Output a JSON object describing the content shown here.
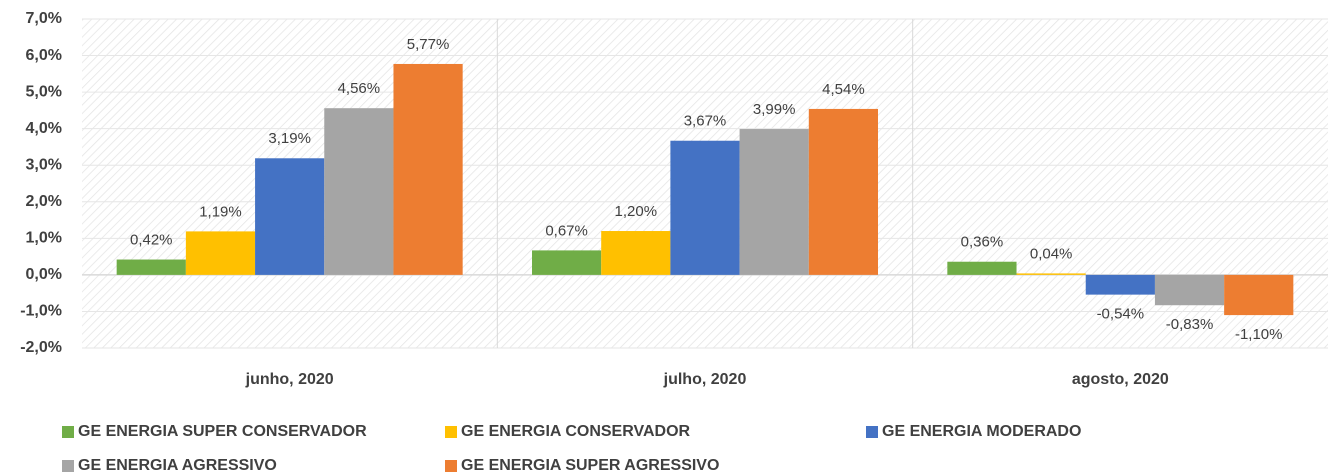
{
  "chart_data": {
    "type": "bar",
    "categories": [
      "junho, 2020",
      "julho, 2020",
      "agosto, 2020"
    ],
    "series": [
      {
        "name": "GE ENERGIA SUPER CONSERVADOR",
        "color": "#70ad47",
        "values": [
          0.42,
          0.67,
          0.36
        ],
        "value_labels": [
          "0,42%",
          "0,67%",
          "0,36%"
        ]
      },
      {
        "name": "GE ENERGIA CONSERVADOR",
        "color": "#ffc000",
        "values": [
          1.19,
          1.2,
          0.04
        ],
        "value_labels": [
          "1,19%",
          "1,20%",
          "0,04%"
        ]
      },
      {
        "name": "GE ENERGIA MODERADO",
        "color": "#4472c4",
        "values": [
          3.19,
          3.67,
          -0.54
        ],
        "value_labels": [
          "3,19%",
          "3,67%",
          "-0,54%"
        ]
      },
      {
        "name": "GE ENERGIA AGRESSIVO",
        "color": "#a5a5a5",
        "values": [
          4.56,
          3.99,
          -0.83
        ],
        "value_labels": [
          "4,56%",
          "3,99%",
          "-0,83%"
        ]
      },
      {
        "name": "GE ENERGIA SUPER AGRESSIVO",
        "color": "#ed7d31",
        "values": [
          5.77,
          4.54,
          -1.1
        ],
        "value_labels": [
          "5,77%",
          "4,54%",
          "-1,10%"
        ]
      }
    ],
    "ylim": [
      -2,
      7
    ],
    "yticks": [
      {
        "value": -2,
        "label": "-2,0%"
      },
      {
        "value": -1,
        "label": "-1,0%"
      },
      {
        "value": 0,
        "label": "0,0%"
      },
      {
        "value": 1,
        "label": "1,0%"
      },
      {
        "value": 2,
        "label": "2,0%"
      },
      {
        "value": 3,
        "label": "3,0%"
      },
      {
        "value": 4,
        "label": "4,0%"
      },
      {
        "value": 5,
        "label": "5,0%"
      },
      {
        "value": 6,
        "label": "6,0%"
      },
      {
        "value": 7,
        "label": "7,0%"
      }
    ],
    "grid": true,
    "legend": "bottom"
  }
}
